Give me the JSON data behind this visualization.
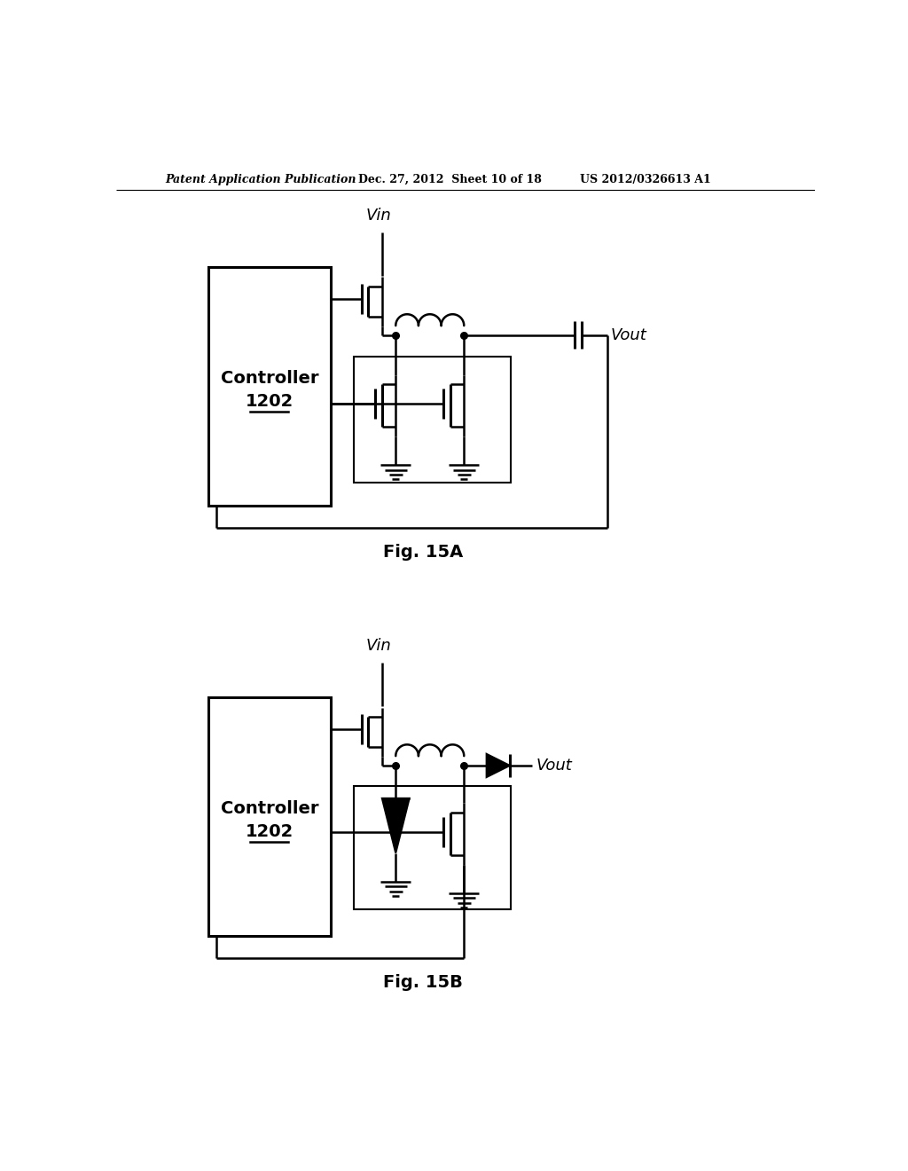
{
  "background_color": "#ffffff",
  "header_left": "Patent Application Publication",
  "header_center": "Dec. 27, 2012  Sheet 10 of 18",
  "header_right": "US 2012/0326613 A1",
  "fig15a_label": "Fig. 15A",
  "fig15b_label": "Fig. 15B",
  "controller_label_line1": "Controller",
  "controller_label_line2": "1202",
  "vin_label": "Vin",
  "vout_label": "Vout",
  "lw": 1.8,
  "lw_thick": 2.2,
  "header_fontsize": 9,
  "label_fontsize": 13,
  "fig_label_fontsize": 14,
  "ctrl_fontsize": 14
}
